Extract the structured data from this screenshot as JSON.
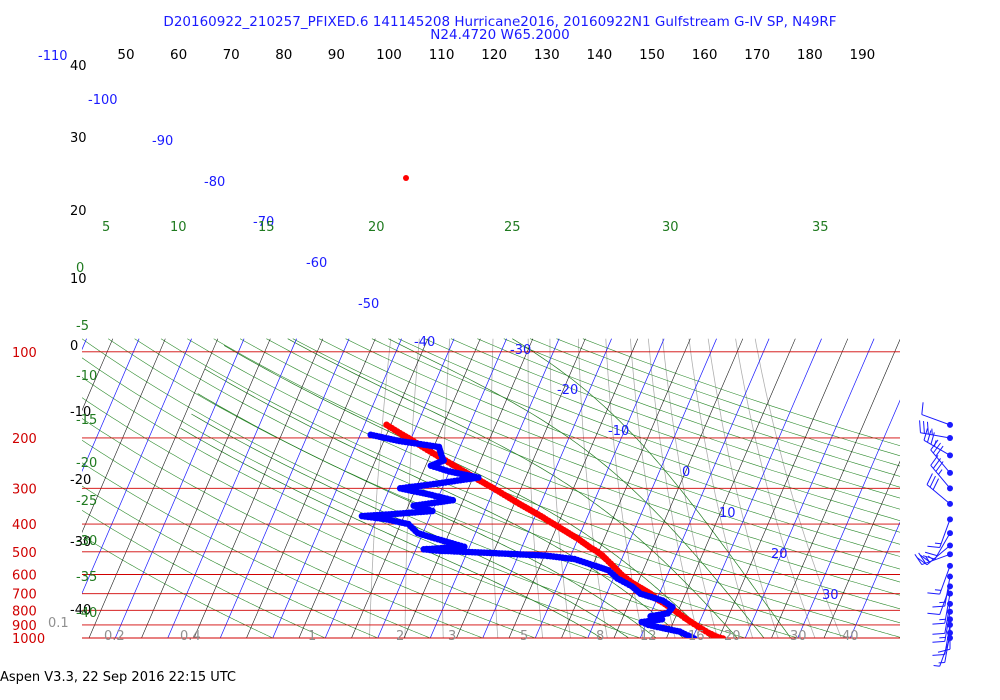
{
  "header": {
    "line1": "D20160922_210257_PFIXED.6 141145208 Hurricane2016, 20160922N1 Gulfstream G-IV SP, N49RF",
    "line2": "N24.4720 W65.2000"
  },
  "footer": {
    "text": "Aspen V3.3, 22 Sep 2016  22:15 UTC"
  },
  "chart_data": {
    "type": "line",
    "subtype": "skew-T log-P thermodynamic diagram",
    "y_axis": {
      "scale": "log",
      "unit": "hPa",
      "range": [
        1000,
        100
      ],
      "tick_labels": [
        "100",
        "200",
        "300",
        "400",
        "500",
        "600",
        "700",
        "800",
        "900",
        "1000"
      ]
    },
    "x_axis_top": {
      "unit": "degF",
      "tick_labels": [
        "50",
        "60",
        "70",
        "80",
        "90",
        "100",
        "110",
        "120",
        "130",
        "140",
        "150",
        "160",
        "170",
        "180",
        "190"
      ]
    },
    "left_column_labels": [
      "-110",
      "40",
      "30",
      "20",
      "10",
      "0",
      "-10",
      "-20",
      "-30",
      "-40"
    ],
    "isotherm_labels": [
      "-100",
      "-90",
      "-80",
      "-70",
      "-60",
      "-50",
      "-40",
      "-30",
      "-20",
      "-10",
      "0",
      "10",
      "20",
      "30"
    ],
    "moist_adiabat_labels": [
      "5",
      "10",
      "15",
      "20",
      "25",
      "30",
      "35"
    ],
    "dry_adiabat_labels": [
      "0",
      "-5",
      "-10",
      "-15",
      "-20",
      "-25",
      "-30",
      "-35",
      "-40"
    ],
    "mixing_ratio_labels": [
      "0.1",
      "0.2",
      "0.4",
      "1",
      "2",
      "3",
      "5",
      "8",
      "12",
      "16",
      "20",
      "30",
      "40"
    ],
    "grid": true,
    "series": [
      {
        "role": "temperature",
        "color": "#ff0000",
        "points": [
          [
            1005,
            25.8
          ],
          [
            990,
            24.5
          ],
          [
            960,
            22.6
          ],
          [
            920,
            20.5
          ],
          [
            880,
            18.4
          ],
          [
            850,
            16.8
          ],
          [
            820,
            15.3
          ],
          [
            790,
            13.6
          ],
          [
            760,
            11.9
          ],
          [
            730,
            9.9
          ],
          [
            700,
            8.3
          ],
          [
            670,
            6.1
          ],
          [
            640,
            3.8
          ],
          [
            600,
            1.2
          ],
          [
            570,
            -0.5
          ],
          [
            550,
            -1.7
          ],
          [
            530,
            -3.0
          ],
          [
            515,
            -4.0
          ],
          [
            500,
            -5.2
          ],
          [
            480,
            -7.2
          ],
          [
            450,
            -10.0
          ],
          [
            420,
            -13.4
          ],
          [
            400,
            -15.8
          ],
          [
            370,
            -19.6
          ],
          [
            340,
            -24.0
          ],
          [
            320,
            -27.0
          ],
          [
            300,
            -30.2
          ],
          [
            280,
            -33.8
          ],
          [
            260,
            -37.6
          ],
          [
            240,
            -41.6
          ],
          [
            220,
            -46.0
          ],
          [
            200,
            -50.6
          ],
          [
            190,
            -53.2
          ],
          [
            180,
            -55.8
          ]
        ]
      },
      {
        "role": "dewpoint",
        "color": "#0000ff",
        "points": [
          [
            1005,
            20.3
          ],
          [
            990,
            19.6
          ],
          [
            970,
            18.2
          ],
          [
            950,
            17.0
          ],
          [
            920,
            13.0
          ],
          [
            900,
            10.5
          ],
          [
            880,
            9.0
          ],
          [
            860,
            12.6
          ],
          [
            840,
            10.2
          ],
          [
            820,
            13.2
          ],
          [
            780,
            13.6
          ],
          [
            740,
            11.2
          ],
          [
            700,
            6.4
          ],
          [
            660,
            4.2
          ],
          [
            620,
            0.8
          ],
          [
            580,
            -1.6
          ],
          [
            560,
            -4.4
          ],
          [
            530,
            -9.0
          ],
          [
            515,
            -15.0
          ],
          [
            505,
            -25.0
          ],
          [
            495,
            -36.0
          ],
          [
            490,
            -38.5
          ],
          [
            480,
            -31.0
          ],
          [
            470,
            -33.0
          ],
          [
            455,
            -36.0
          ],
          [
            445,
            -38.0
          ],
          [
            430,
            -41.0
          ],
          [
            400,
            -43.5
          ],
          [
            385,
            -48.0
          ],
          [
            375,
            -53.0
          ],
          [
            370,
            -48.0
          ],
          [
            360,
            -40.0
          ],
          [
            345,
            -44.0
          ],
          [
            330,
            -37.0
          ],
          [
            315,
            -42.0
          ],
          [
            300,
            -48.0
          ],
          [
            290,
            -42.0
          ],
          [
            275,
            -34.0
          ],
          [
            262,
            -40.0
          ],
          [
            250,
            -44.0
          ],
          [
            240,
            -42.0
          ],
          [
            228,
            -43.0
          ],
          [
            215,
            -44.0
          ],
          [
            205,
            -52.0
          ],
          [
            195,
            -58.0
          ]
        ]
      }
    ],
    "wind_barbs": [
      {
        "pressure": 180,
        "speed_kt": 10,
        "direction_deg": 290
      },
      {
        "pressure": 200,
        "speed_kt": 35,
        "direction_deg": 280
      },
      {
        "pressure": 230,
        "speed_kt": 35,
        "direction_deg": 300
      },
      {
        "pressure": 265,
        "speed_kt": 30,
        "direction_deg": 320
      },
      {
        "pressure": 300,
        "speed_kt": 35,
        "direction_deg": 320
      },
      {
        "pressure": 340,
        "speed_kt": 30,
        "direction_deg": 310
      },
      {
        "pressure": 385,
        "speed_kt": 15,
        "direction_deg": 200
      },
      {
        "pressure": 430,
        "speed_kt": 20,
        "direction_deg": 210
      },
      {
        "pressure": 475,
        "speed_kt": 25,
        "direction_deg": 230
      },
      {
        "pressure": 510,
        "speed_kt": 25,
        "direction_deg": 250
      },
      {
        "pressure": 560,
        "speed_kt": 15,
        "direction_deg": 200
      },
      {
        "pressure": 610,
        "speed_kt": 15,
        "direction_deg": 190
      },
      {
        "pressure": 660,
        "speed_kt": 10,
        "direction_deg": 200
      },
      {
        "pressure": 700,
        "speed_kt": 15,
        "direction_deg": 190
      },
      {
        "pressure": 760,
        "speed_kt": 10,
        "direction_deg": 190
      },
      {
        "pressure": 810,
        "speed_kt": 15,
        "direction_deg": 190
      },
      {
        "pressure": 860,
        "speed_kt": 10,
        "direction_deg": 180
      },
      {
        "pressure": 900,
        "speed_kt": 10,
        "direction_deg": 190
      },
      {
        "pressure": 960,
        "speed_kt": 5,
        "direction_deg": 190
      },
      {
        "pressure": 1000,
        "speed_kt": 5,
        "direction_deg": 200
      }
    ]
  }
}
